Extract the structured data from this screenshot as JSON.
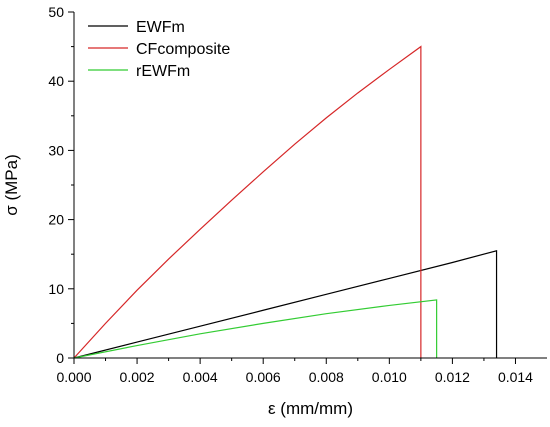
{
  "chart_data": {
    "type": "line",
    "title": "",
    "xlabel": "ε (mm/mm)",
    "ylabel": "σ (MPa)",
    "xlim": [
      0,
      0.015
    ],
    "ylim": [
      0,
      50
    ],
    "x_ticks": [
      0.0,
      0.002,
      0.004,
      0.006,
      0.008,
      0.01,
      0.012,
      0.014
    ],
    "x_tick_labels": [
      "0.000",
      "0.002",
      "0.004",
      "0.006",
      "0.008",
      "0.010",
      "0.012",
      "0.014"
    ],
    "y_ticks": [
      0,
      10,
      20,
      30,
      40,
      50
    ],
    "y_tick_labels": [
      "0",
      "10",
      "20",
      "30",
      "40",
      "50"
    ],
    "grid": false,
    "legend_position": "top-left",
    "series": [
      {
        "name": "EWFm",
        "color": "#000000",
        "x": [
          0.0,
          0.002,
          0.004,
          0.006,
          0.008,
          0.01,
          0.012,
          0.0134,
          0.0134
        ],
        "y": [
          0.0,
          2.3,
          4.6,
          6.9,
          9.2,
          11.5,
          13.8,
          15.5,
          0.0
        ]
      },
      {
        "name": "CFcomposite",
        "color": "#d62728",
        "x": [
          0.0,
          0.001,
          0.002,
          0.003,
          0.004,
          0.005,
          0.006,
          0.007,
          0.008,
          0.009,
          0.01,
          0.011,
          0.011
        ],
        "y": [
          0.0,
          5.0,
          9.8,
          14.3,
          18.6,
          22.8,
          26.9,
          30.9,
          34.7,
          38.3,
          41.7,
          45.0,
          0.0
        ]
      },
      {
        "name": "rEWFm",
        "color": "#33cc33",
        "x": [
          0.0,
          0.002,
          0.004,
          0.006,
          0.008,
          0.01,
          0.0115,
          0.0115
        ],
        "y": [
          0.0,
          1.8,
          3.5,
          5.0,
          6.4,
          7.6,
          8.4,
          0.0
        ]
      }
    ]
  }
}
